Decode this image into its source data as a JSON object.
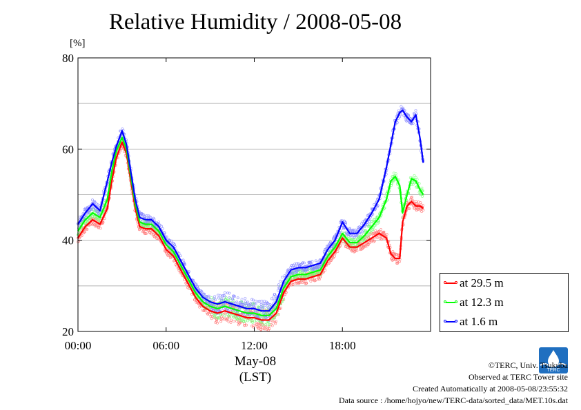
{
  "chart_data": {
    "type": "line",
    "title": "Relative Humidity / 2008-05-08",
    "y_unit": "[%]",
    "xlabel_date": "May-08",
    "xlabel_tz": "(LST)",
    "ylim": [
      20,
      80
    ],
    "y_ticks": [
      20,
      40,
      60,
      80
    ],
    "xlim": [
      0,
      24
    ],
    "x_ticks": [
      0,
      6,
      12,
      18
    ],
    "x_tick_labels": [
      "00:00",
      "06:00",
      "12:00",
      "18:00"
    ],
    "grid": true,
    "legend_position": "bottom-right outside",
    "series": [
      {
        "name": "at 29.5 m",
        "color": "#ff0000",
        "x": [
          0,
          0.5,
          1,
          1.5,
          2,
          2.3,
          2.6,
          3,
          3.3,
          3.6,
          3.9,
          4.2,
          4.6,
          5,
          5.5,
          6,
          6.5,
          7,
          7.5,
          8,
          8.5,
          9,
          9.5,
          10,
          10.5,
          11,
          11.5,
          12,
          12.5,
          13,
          13.5,
          14,
          14.5,
          15,
          15.5,
          16,
          16.5,
          17,
          17.5,
          18,
          18.5,
          19,
          19.5,
          20,
          20.5,
          21,
          21.3,
          21.6,
          21.9,
          22.1,
          22.4,
          22.7,
          23,
          23.3,
          23.5
        ],
        "y": [
          40.5,
          43,
          44.5,
          43.5,
          47,
          53,
          58,
          61.5,
          59,
          53,
          47,
          43,
          42.5,
          42.5,
          41,
          38,
          36.5,
          33.5,
          30.5,
          27.5,
          25.5,
          24.5,
          24,
          24.5,
          24,
          23.5,
          23,
          23,
          22.5,
          22.5,
          24,
          28.5,
          31,
          31.5,
          31.5,
          32,
          32.5,
          35.5,
          37.5,
          40.5,
          38.5,
          38.5,
          39.5,
          40.5,
          41.5,
          40.5,
          37,
          36,
          36,
          44,
          47.5,
          48.5,
          47.5,
          47.5,
          47
        ]
      },
      {
        "name": "at 12.3 m",
        "color": "#00ff00",
        "x": [
          0,
          0.5,
          1,
          1.5,
          2,
          2.3,
          2.6,
          3,
          3.3,
          3.6,
          3.9,
          4.2,
          4.6,
          5,
          5.5,
          6,
          6.5,
          7,
          7.5,
          8,
          8.5,
          9,
          9.5,
          10,
          10.5,
          11,
          11.5,
          12,
          12.5,
          13,
          13.5,
          14,
          14.5,
          15,
          15.5,
          16,
          16.5,
          17,
          17.5,
          18,
          18.5,
          19,
          19.5,
          20,
          20.5,
          21,
          21.3,
          21.6,
          21.9,
          22.1,
          22.4,
          22.7,
          23,
          23.3,
          23.5
        ],
        "y": [
          42,
          44.5,
          46,
          45,
          49,
          55,
          59.5,
          62.5,
          60,
          54,
          48,
          44,
          43.5,
          43.5,
          42,
          39,
          37.5,
          34.5,
          31.5,
          28.5,
          26.5,
          25.5,
          25,
          25.5,
          25,
          24.5,
          24,
          24,
          23.5,
          23.5,
          25,
          29.5,
          32,
          32.5,
          32.5,
          33,
          33.5,
          36.5,
          38.5,
          41.5,
          39.5,
          39.5,
          41,
          43,
          45,
          49,
          53,
          54,
          52,
          46,
          50,
          53.5,
          53,
          51,
          50
        ]
      },
      {
        "name": "at 1.6 m",
        "color": "#0000ff",
        "x": [
          0,
          0.5,
          1,
          1.5,
          2,
          2.3,
          2.6,
          3,
          3.3,
          3.6,
          3.9,
          4.2,
          4.6,
          5,
          5.5,
          6,
          6.5,
          7,
          7.5,
          8,
          8.5,
          9,
          9.5,
          10,
          10.5,
          11,
          11.5,
          12,
          12.5,
          13,
          13.5,
          14,
          14.5,
          15,
          15.5,
          16,
          16.5,
          17,
          17.5,
          18,
          18.5,
          19,
          19.5,
          20,
          20.5,
          21,
          21.3,
          21.6,
          21.9,
          22.1,
          22.4,
          22.7,
          23,
          23.3,
          23.5
        ],
        "y": [
          43.5,
          46,
          48,
          46.5,
          53,
          57,
          60.5,
          64,
          61,
          55,
          49,
          45,
          44.5,
          44.5,
          43,
          40,
          38.5,
          35.5,
          32.5,
          29.5,
          27.5,
          26.5,
          26,
          26.5,
          26,
          25.5,
          25,
          25,
          24.5,
          24.5,
          26.5,
          31,
          33.5,
          34,
          34,
          34.5,
          35,
          38,
          40,
          44,
          41.5,
          41.5,
          43.5,
          46,
          49,
          56,
          61,
          66,
          68,
          68.5,
          67,
          66,
          67.5,
          62,
          57
        ]
      }
    ]
  },
  "footer": {
    "copyright": "©TERC, Univ. Tsukuba",
    "observed": "Observed at TERC Tower site",
    "created": "Created Automatically at 2008-05-08/23:55:32",
    "source": "Data source : /home/hojyo/new/TERC-data/sorted_data/MET.10s.dat",
    "logo_text": "TERC"
  }
}
